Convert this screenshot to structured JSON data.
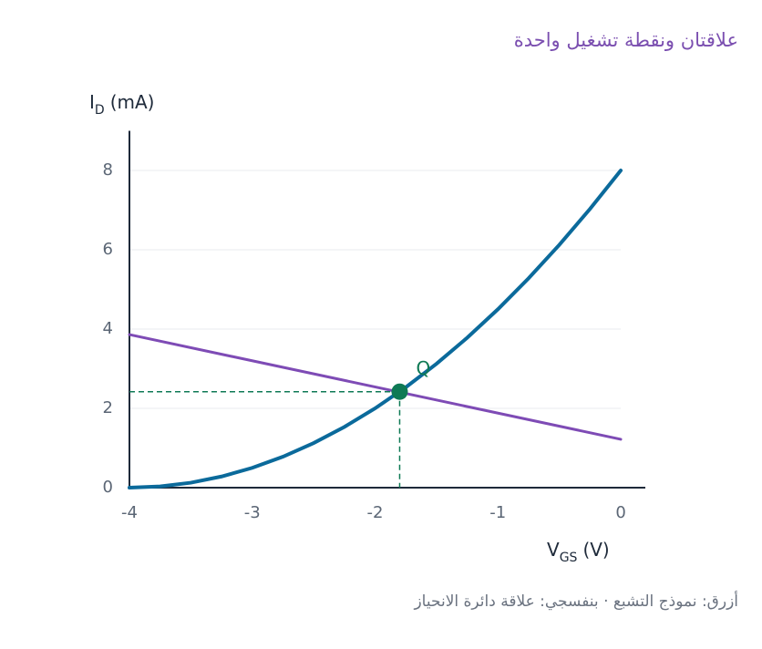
{
  "chart_data": {
    "type": "line",
    "title": "علاقتان ونقطة تشغيل واحدة",
    "caption": "أزرق: نموذج التشبع · بنفسجي: علاقة دائرة الانحياز",
    "y_label": {
      "main": "I",
      "sub": "D",
      "rest": "(mA)"
    },
    "x_label": {
      "main": "V",
      "sub": "GS",
      "rest": "(V)"
    },
    "xlim": [
      -4,
      0.2
    ],
    "ylim": [
      0,
      9
    ],
    "xticks": [
      -4,
      -3,
      -2,
      -1,
      0
    ],
    "yticks": [
      0,
      2,
      4,
      6,
      8
    ],
    "grid": true,
    "series": [
      {
        "color": "#0b6a9b",
        "x": [
          -4,
          -3.75,
          -3.5,
          -3.25,
          -3,
          -2.75,
          -2.5,
          -2.25,
          -2,
          -1.75,
          -1.5,
          -1.25,
          -1,
          -0.75,
          -0.5,
          -0.25,
          0
        ],
        "values": [
          0,
          0.03125,
          0.125,
          0.28125,
          0.5,
          0.78125,
          1.125,
          1.53125,
          2,
          2.53125,
          3.125,
          3.78125,
          4.5,
          5.28125,
          6.125,
          7.03125,
          8
        ]
      },
      {
        "color": "#7e4bb5",
        "x": [
          -4,
          0
        ],
        "values": [
          3.86,
          1.22
        ]
      }
    ],
    "point": {
      "label": "Q",
      "x": -1.8,
      "y": 2.42,
      "color": "#0f7a55"
    }
  }
}
